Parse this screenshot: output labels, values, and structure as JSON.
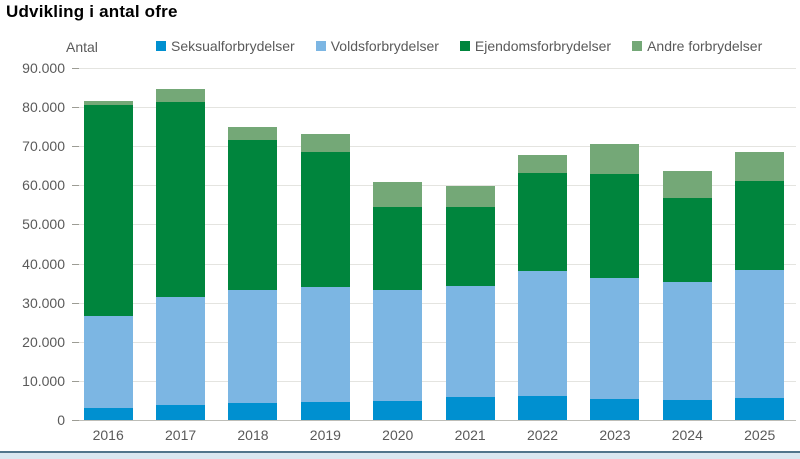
{
  "title": "Udvikling i antal ofre",
  "chart_data": {
    "type": "bar",
    "stacked": true,
    "title": "Udvikling i antal ofre",
    "ylabel": "Antal",
    "xlabel": "",
    "categories": [
      "2016",
      "2017",
      "2018",
      "2019",
      "2020",
      "2021",
      "2022",
      "2023",
      "2024",
      "2025"
    ],
    "series": [
      {
        "name": "Seksualforbrydelser",
        "color": "#0090d0",
        "values": [
          3000,
          3800,
          4300,
          4600,
          4800,
          5800,
          6100,
          5300,
          5100,
          5700
        ]
      },
      {
        "name": "Voldsforbrydelser",
        "color": "#7cb6e3",
        "values": [
          23700,
          27600,
          29000,
          29400,
          28500,
          28400,
          31900,
          31000,
          30100,
          32600
        ]
      },
      {
        "name": "Ejendomsforbrydelser",
        "color": "#00853d",
        "values": [
          53800,
          49800,
          38400,
          34600,
          21100,
          20300,
          25200,
          26700,
          21600,
          22700
        ]
      },
      {
        "name": "Andre forbrydelser",
        "color": "#74a877",
        "values": [
          1200,
          3400,
          3100,
          4600,
          6400,
          5400,
          4600,
          7600,
          6800,
          7500
        ]
      }
    ],
    "ylim": [
      0,
      90000
    ],
    "ytick_interval": 10000,
    "ytick_labels_top_down": [
      "90.000",
      "80.000",
      "70.000",
      "60.000",
      "50.000",
      "40.000",
      "30.000",
      "20.000",
      "10.000",
      "0"
    ],
    "grid": true,
    "legend_position": "top"
  },
  "colors": {
    "gridline": "#e4e4e0",
    "baseline": "#bdbdb7",
    "axis_text": "#5a5a5a",
    "bottom_band": "#d9e7f0",
    "bottom_band_border": "#50758b"
  }
}
